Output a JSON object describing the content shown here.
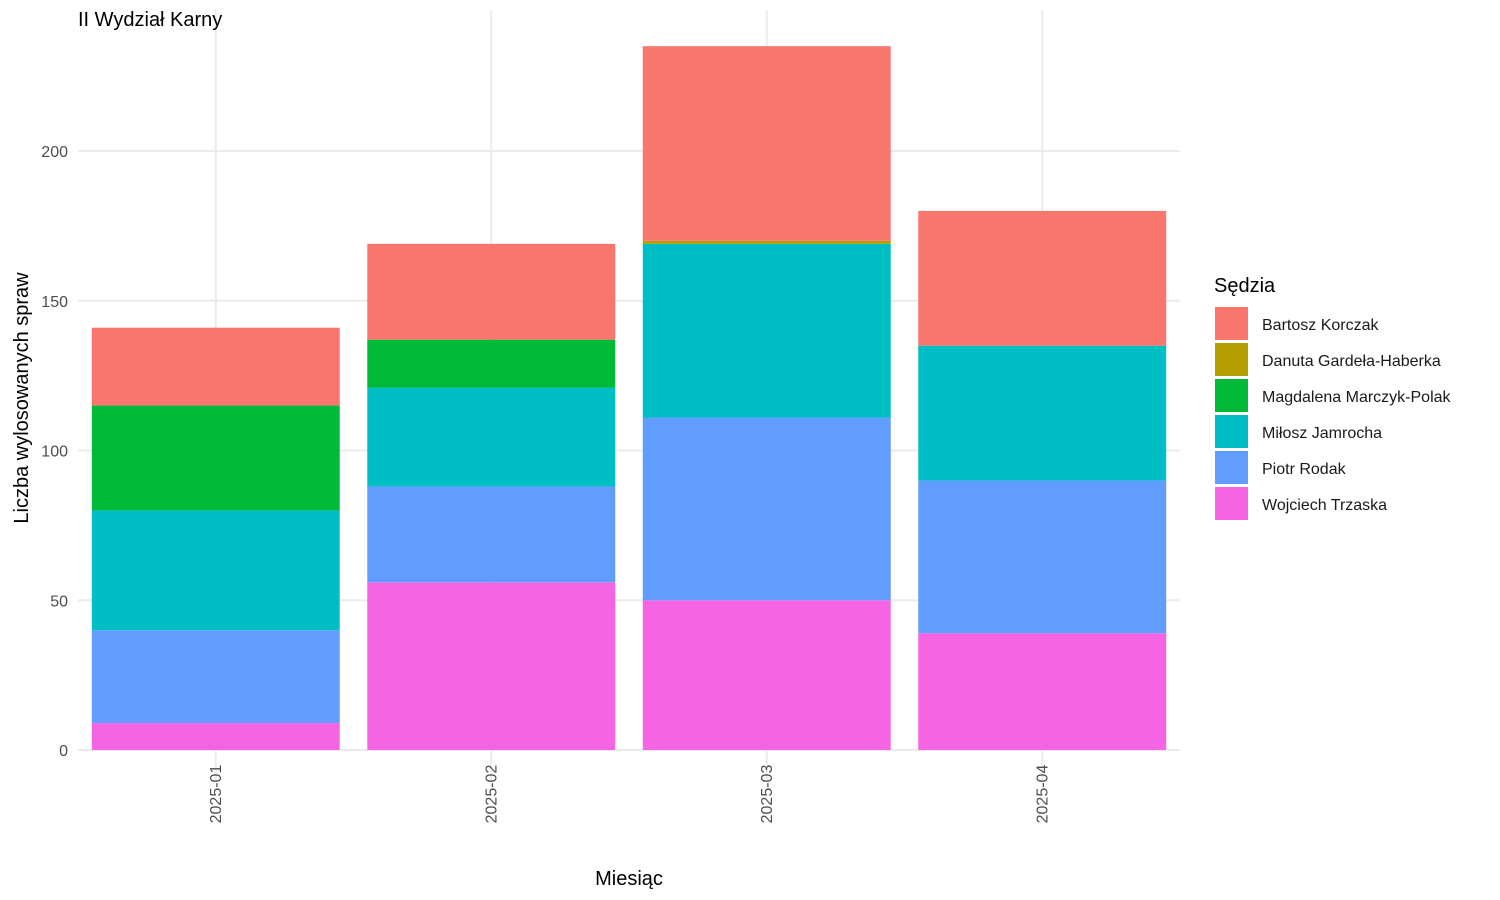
{
  "chart_data": {
    "type": "bar",
    "stacked": true,
    "title": "II Wydział Karny",
    "xlabel": "Miesiąc",
    "ylabel": "Liczba wylosowanych spraw",
    "ylim": [
      0,
      245
    ],
    "yticks": [
      0,
      50,
      100,
      150,
      200
    ],
    "grid": true,
    "legend_position": "right",
    "legend_title": "Sędzia",
    "categories": [
      "2025-01",
      "2025-02",
      "2025-03",
      "2025-04"
    ],
    "series": [
      {
        "name": "Bartosz Korczak",
        "color": "#F8766D",
        "values": [
          26,
          32,
          65,
          45
        ]
      },
      {
        "name": "Danuta Gardeła-Haberka",
        "color": "#B79F00",
        "values": [
          0,
          0,
          1,
          0
        ]
      },
      {
        "name": "Magdalena Marczyk-Polak",
        "color": "#00BA38",
        "values": [
          35,
          16,
          0,
          0
        ]
      },
      {
        "name": "Miłosz Jamrocha",
        "color": "#00BFC4",
        "values": [
          40,
          33,
          58,
          45
        ]
      },
      {
        "name": "Piotr Rodak",
        "color": "#619CFF",
        "values": [
          31,
          32,
          61,
          51
        ]
      },
      {
        "name": "Wojciech Trzaska",
        "color": "#F564E3",
        "values": [
          9,
          56,
          50,
          39
        ]
      }
    ]
  }
}
